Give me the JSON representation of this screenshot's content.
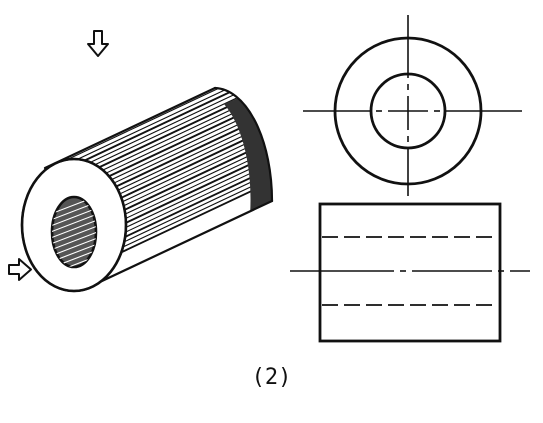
{
  "figure": {
    "caption": "(2)",
    "ink_color": "#111111",
    "icons": {
      "view_arrow_top": "outlined-down-arrow",
      "view_arrow_front": "outlined-right-arrow"
    }
  }
}
